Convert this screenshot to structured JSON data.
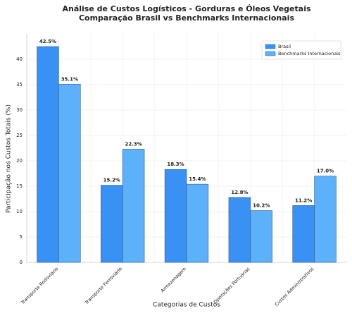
{
  "chart_data": {
    "type": "bar",
    "title": "Análise de Custos Logísticos - Gorduras e Óleos Vegetais",
    "subtitle": "Comparação Brasil vs Benchmarks Internacionais",
    "x_label": "Categorias de Custos",
    "y_label": "Participação nos Custos Totais (%)",
    "categories": [
      "Transporte Rodoviário",
      "Transporte Ferroviário",
      "Armazenagem",
      "Operações Portuárias",
      "Custos Administrativos"
    ],
    "series": [
      {
        "name": "Brasil",
        "color": "#3a91f4",
        "values": [
          42.5,
          15.2,
          18.3,
          12.8,
          11.2
        ],
        "value_labels": [
          "42.5%",
          "15.2%",
          "18.3%",
          "12.8%",
          "11.2%"
        ]
      },
      {
        "name": "Benchmarks Internacionais",
        "color": "#5db0fa",
        "values": [
          35.1,
          22.3,
          15.4,
          10.2,
          17.0
        ],
        "value_labels": [
          "35.1%",
          "22.3%",
          "15.4%",
          "10.2%",
          "17.0%"
        ]
      }
    ],
    "ylim": [
      0,
      45
    ],
    "yticks": [
      0,
      5,
      10,
      15,
      20,
      25,
      30,
      35,
      40
    ],
    "grid": true,
    "legend": "upper right"
  }
}
